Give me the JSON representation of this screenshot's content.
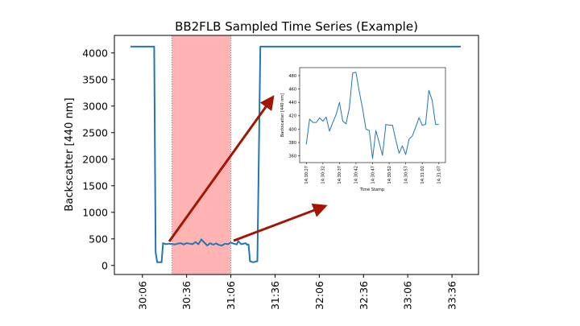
{
  "chart_data": [
    {
      "type": "line",
      "title": "BB2FLB Sampled Time Series (Example)",
      "xlabel": "",
      "ylabel": "Backscatter [440 nm]",
      "x_tick_labels": [
        "30:06",
        "30:36",
        "31:06",
        "31:36",
        "32:06",
        "32:36",
        "33:06",
        "33:36"
      ],
      "x_tick_values_sec": [
        0,
        30,
        60,
        90,
        120,
        150,
        180,
        210
      ],
      "y_ticks": [
        0,
        500,
        1000,
        1500,
        2000,
        2500,
        3000,
        3500,
        4000
      ],
      "xlim_sec": [
        -19,
        228
      ],
      "ylim": [
        -170,
        4330
      ],
      "highlight_span_sec": [
        20,
        60
      ],
      "color": "#1f77b4",
      "highlight_color": "#ffb3b3",
      "series": [
        {
          "x": [
            -8,
            8,
            9,
            10,
            13,
            14,
            16,
            18,
            20,
            22,
            24,
            26,
            28,
            30,
            32,
            34,
            36,
            38,
            40,
            42,
            44,
            46,
            48,
            50,
            52,
            54,
            56,
            58,
            60,
            62,
            64,
            65,
            67,
            70,
            71,
            72,
            73,
            75,
            78,
            80,
            90,
            110,
            130,
            150,
            170,
            190,
            210,
            216
          ],
          "y": [
            4120,
            4120,
            250,
            60,
            60,
            420,
            400,
            410,
            405,
            395,
            410,
            420,
            395,
            420,
            410,
            400,
            440,
            400,
            490,
            430,
            375,
            420,
            390,
            415,
            385,
            375,
            410,
            400,
            430,
            410,
            395,
            460,
            400,
            420,
            390,
            395,
            80,
            60,
            80,
            4120,
            4120,
            4120,
            4120,
            4120,
            4120,
            4120,
            4120,
            4120
          ]
        }
      ]
    },
    {
      "type": "line",
      "xlabel": "Time Stamp",
      "ylabel": "Backscatter [440 nm]",
      "x_tick_labels": [
        "14:30:27",
        "14:30:32",
        "14:30:37",
        "14:30:42",
        "14:30:47",
        "14:30:52",
        "14:30:57",
        "14:31:02",
        "14:31:07"
      ],
      "y_ticks": [
        360,
        380,
        400,
        420,
        440,
        460,
        480
      ],
      "xlim": [
        -2,
        42
      ],
      "ylim": [
        350,
        492
      ],
      "color": "#1f77b4",
      "series": [
        {
          "x": [
            0,
            1,
            2,
            3,
            4,
            5,
            6,
            7,
            8,
            9,
            10,
            11,
            12,
            13,
            14,
            15,
            16,
            17,
            18,
            19,
            20,
            21,
            22,
            23,
            24,
            25,
            26,
            27,
            28,
            29,
            30,
            31,
            32,
            33,
            34,
            35,
            36,
            37,
            38,
            39,
            40
          ],
          "y": [
            377,
            415,
            410,
            410,
            417,
            412,
            418,
            397,
            410,
            422,
            440,
            412,
            408,
            432,
            484,
            485,
            456,
            430,
            400,
            398,
            356,
            398,
            380,
            361,
            407,
            406,
            406,
            384,
            364,
            375,
            362,
            385,
            390,
            403,
            417,
            406,
            407,
            458,
            443,
            407,
            407
          ]
        }
      ]
    }
  ],
  "arrows": {
    "color": "#a31500"
  }
}
